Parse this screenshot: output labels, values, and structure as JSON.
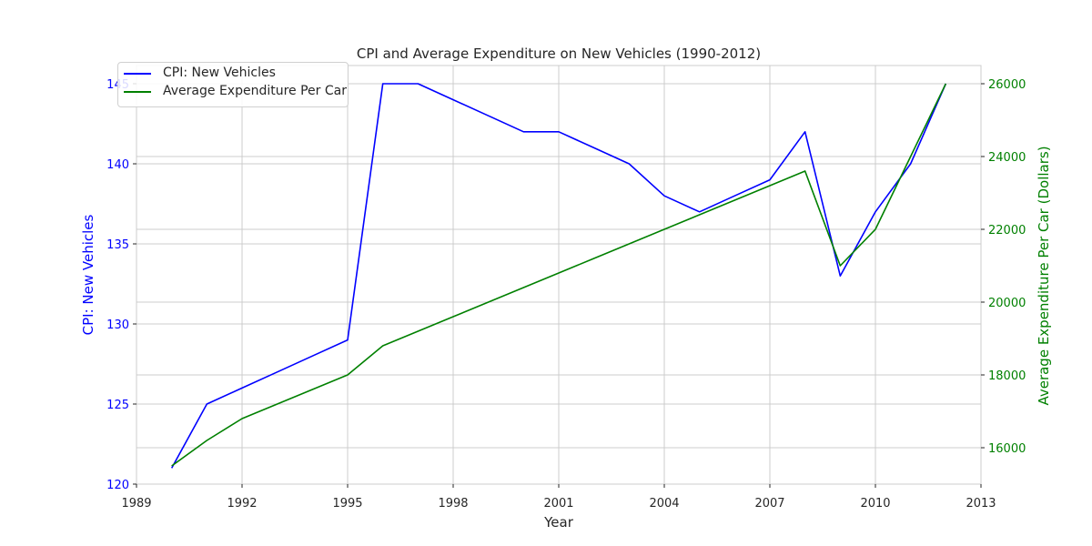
{
  "chart_data": {
    "type": "line",
    "title": "CPI and Average Expenditure on New Vehicles (1990-2012)",
    "xlabel": "Year",
    "ylabel_left": "CPI: New Vehicles",
    "ylabel_right": "Average Expenditure Per Car (Dollars)",
    "xlim": [
      1989,
      2013
    ],
    "ylim_left": [
      120,
      145
    ],
    "ylim_right": [
      15500,
      26000
    ],
    "x_ticks": [
      1989,
      1992,
      1995,
      1998,
      2001,
      2004,
      2007,
      2010,
      2013
    ],
    "y_ticks_left": [
      120,
      125,
      130,
      135,
      140,
      145
    ],
    "y_ticks_right": [
      16000,
      18000,
      20000,
      22000,
      24000,
      26000
    ],
    "grid": true,
    "legend_position": "top-left",
    "colors": {
      "left": "#0000ff",
      "right": "#008000"
    },
    "x": [
      1990,
      1991,
      1992,
      1993,
      1994,
      1995,
      1996,
      1997,
      1998,
      1999,
      2000,
      2001,
      2002,
      2003,
      2004,
      2005,
      2006,
      2007,
      2008,
      2009,
      2010,
      2011,
      2012
    ],
    "series": [
      {
        "name": "CPI: New Vehicles",
        "axis": "left",
        "color": "#0000ff",
        "values": [
          121,
          125,
          126,
          127,
          128,
          129,
          145,
          145,
          144,
          143,
          142,
          142,
          141,
          140,
          138,
          137,
          138,
          139,
          142,
          133,
          137,
          140,
          145
        ]
      },
      {
        "name": "Average Expenditure Per Car",
        "axis": "right",
        "color": "#008000",
        "values": [
          15500,
          16200,
          16800,
          17200,
          17600,
          18000,
          18800,
          19200,
          19600,
          20000,
          20400,
          20800,
          21200,
          21600,
          22000,
          22400,
          22800,
          23200,
          23600,
          21000,
          22000,
          24000,
          26000
        ]
      }
    ]
  }
}
